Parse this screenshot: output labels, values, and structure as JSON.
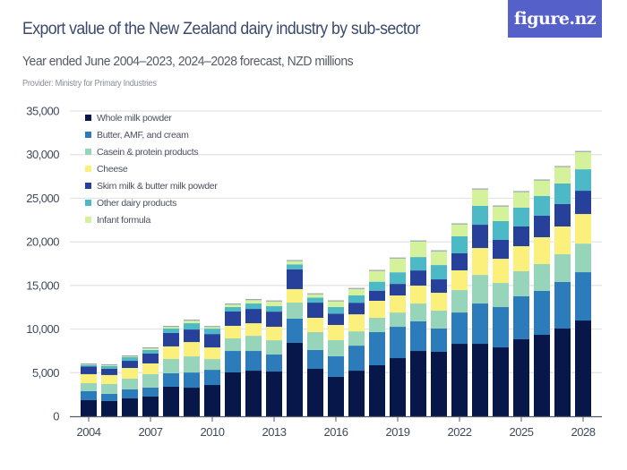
{
  "header": {
    "title": "Export value of the New Zealand dairy industry by sub-sector",
    "subtitle": "Year ended June 2004–2023, 2024–2028 forecast, NZD millions",
    "provider": "Provider: Ministry for Primary Industries",
    "logo_text": "figure.nz"
  },
  "colors": {
    "logo_bg": "#5561c9",
    "title": "#3a4a6b"
  },
  "chart_data": {
    "type": "bar",
    "stacked": true,
    "title": "Export value of the New Zealand dairy industry by sub-sector",
    "subtitle": "Year ended June 2004–2023, 2024–2028 forecast, NZD millions",
    "xlabel": "",
    "ylabel": "",
    "ylim": [
      0,
      35000
    ],
    "yticks": [
      0,
      5000,
      10000,
      15000,
      20000,
      25000,
      30000,
      35000
    ],
    "ytick_labels": [
      "0",
      "5,000",
      "10,000",
      "15,000",
      "20,000",
      "25,000",
      "30,000",
      "35,000"
    ],
    "xtick_labels": [
      "2004",
      "2007",
      "2010",
      "2013",
      "2016",
      "2019",
      "2022",
      "2025",
      "2028"
    ],
    "grid": true,
    "legend_position": "top-left",
    "categories": [
      "2004",
      "2005",
      "2006",
      "2007",
      "2008",
      "2009",
      "2010",
      "2011",
      "2012",
      "2013",
      "2014",
      "2015",
      "2016",
      "2017",
      "2018",
      "2019",
      "2020",
      "2021",
      "2022",
      "2023",
      "2024",
      "2025",
      "2026",
      "2027",
      "2028"
    ],
    "series": [
      {
        "name": "Whole milk powder",
        "color": "#081749",
        "values": [
          1850,
          1750,
          2050,
          2260,
          3390,
          3280,
          3590,
          5030,
          5230,
          5130,
          8420,
          5440,
          4520,
          5230,
          5850,
          6670,
          7490,
          7390,
          8310,
          8310,
          7900,
          8830,
          9340,
          10060,
          10980
        ]
      },
      {
        "name": "Butter, AMF, and cream",
        "color": "#2c7bba",
        "values": [
          1030,
          820,
          1030,
          1030,
          1540,
          1740,
          1740,
          2460,
          2260,
          1950,
          2770,
          2160,
          2360,
          2870,
          3800,
          3590,
          3390,
          2670,
          3590,
          4620,
          4620,
          4930,
          5030,
          5340,
          5540
        ]
      },
      {
        "name": "Casein & protein products",
        "color": "#97d5bb",
        "values": [
          920,
          1130,
          1230,
          1540,
          1640,
          1850,
          1230,
          1440,
          1740,
          1640,
          1850,
          2050,
          1850,
          1640,
          1640,
          1640,
          2050,
          2050,
          2570,
          3280,
          2770,
          2870,
          3080,
          3180,
          3280
        ]
      },
      {
        "name": "Cheese",
        "color": "#fbf07b",
        "values": [
          1030,
          1030,
          1230,
          1230,
          1440,
          1640,
          1330,
          1440,
          1440,
          1540,
          1540,
          1640,
          1740,
          1950,
          1950,
          1950,
          2050,
          2050,
          2260,
          3080,
          2770,
          2870,
          3080,
          3180,
          3390
        ]
      },
      {
        "name": "Skim milk & butter milk powder",
        "color": "#27409a",
        "values": [
          870,
          720,
          820,
          1130,
          1540,
          1440,
          1540,
          1640,
          1640,
          1740,
          2260,
          1740,
          1300,
          1330,
          1160,
          1330,
          1740,
          1540,
          1950,
          2670,
          2160,
          2260,
          2460,
          2570,
          2670
        ]
      },
      {
        "name": "Other dairy products",
        "color": "#4db8c6",
        "values": [
          180,
          310,
          410,
          410,
          510,
          720,
          620,
          510,
          620,
          620,
          580,
          580,
          750,
          850,
          1030,
          1330,
          1540,
          1640,
          1950,
          2160,
          2160,
          2160,
          2260,
          2360,
          2460
        ]
      },
      {
        "name": "Infant formula",
        "color": "#d4f29b",
        "values": [
          70,
          100,
          100,
          200,
          200,
          310,
          200,
          310,
          410,
          560,
          390,
          390,
          670,
          740,
          1250,
          1590,
          1800,
          1590,
          1390,
          1900,
          1690,
          1800,
          1800,
          1900,
          2000
        ]
      }
    ]
  }
}
